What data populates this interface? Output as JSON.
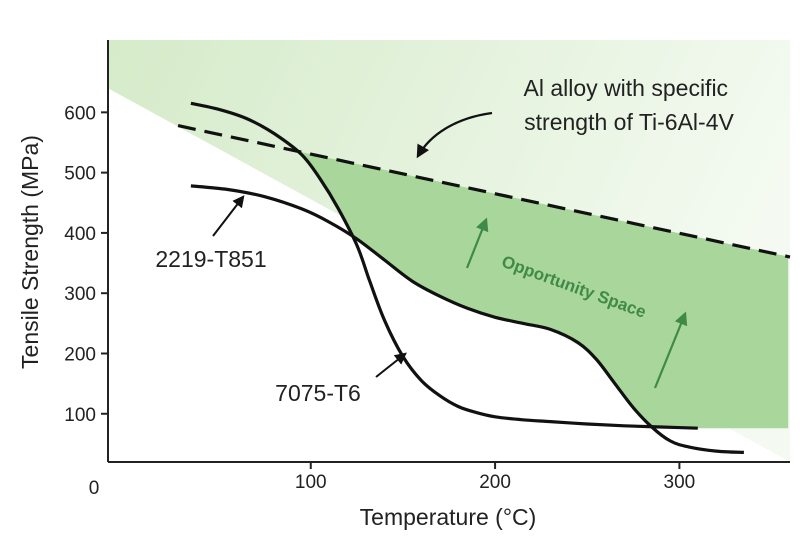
{
  "chart_data": {
    "type": "line",
    "xlabel": "Temperature (°C)",
    "ylabel": "Tensile Strength (MPa)",
    "xlim": [
      -10,
      360
    ],
    "ylim": [
      20,
      720
    ],
    "x_ticks": [
      100,
      200,
      300
    ],
    "y_ticks": [
      100,
      200,
      300,
      400,
      500,
      600
    ],
    "origin_label": "0",
    "grid": false,
    "legend": "none",
    "series": [
      {
        "name": "7075-T6",
        "color": "#111111",
        "x": [
          35,
          50,
          65,
          80,
          95,
          105,
          115,
          125,
          132,
          140,
          150,
          160,
          170,
          180,
          190,
          200,
          215,
          230,
          250,
          270,
          290,
          310
        ],
        "y": [
          615,
          605,
          590,
          565,
          530,
          490,
          440,
          380,
          320,
          255,
          195,
          155,
          130,
          112,
          102,
          95,
          90,
          87,
          83,
          80,
          78,
          76
        ]
      },
      {
        "name": "2219-T851",
        "color": "#111111",
        "x": [
          35,
          55,
          75,
          95,
          110,
          125,
          140,
          155,
          170,
          185,
          200,
          215,
          230,
          245,
          255,
          265,
          275,
          285,
          295,
          305,
          320,
          335
        ],
        "y": [
          478,
          472,
          460,
          440,
          418,
          390,
          355,
          320,
          295,
          275,
          260,
          250,
          240,
          218,
          190,
          150,
          110,
          78,
          55,
          45,
          38,
          36
        ]
      },
      {
        "name": "Al alloy with specific strength of Ti-6Al-4V",
        "color": "#111111",
        "dashed": true,
        "x": [
          28,
          360
        ],
        "y": [
          578,
          360
        ]
      }
    ],
    "regions": [
      {
        "name": "background-green",
        "color": "#e9f3e4"
      },
      {
        "name": "Opportunity Space",
        "color": "#a9d69b"
      }
    ],
    "annotations": [
      {
        "text_lines": [
          "Al alloy with specific",
          "strength of Ti-6Al-4V"
        ],
        "target": "dashed line"
      },
      {
        "text": "2219-T851",
        "target": "2219-T851 curve"
      },
      {
        "text": "7075-T6",
        "target": "7075-T6 curve"
      },
      {
        "text": "Opportunity Space",
        "color": "#3f8a48"
      }
    ]
  }
}
